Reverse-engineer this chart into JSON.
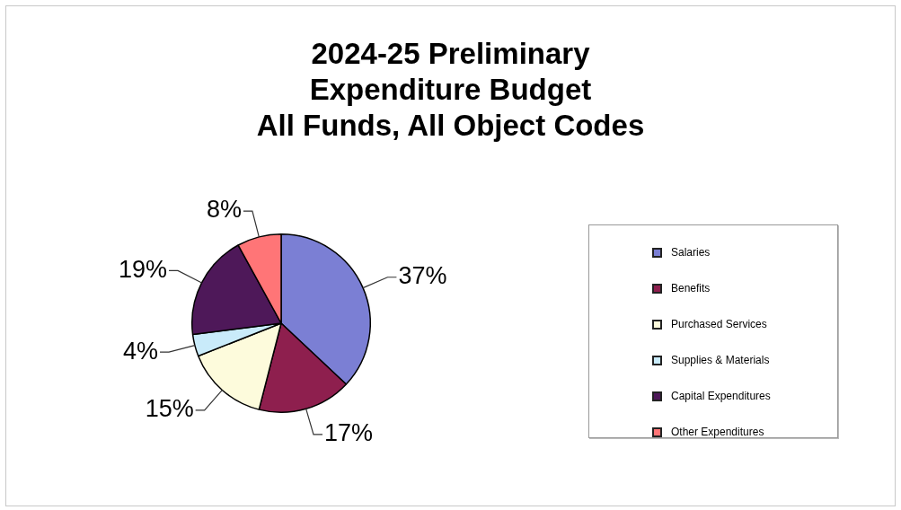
{
  "chart_data": {
    "type": "pie",
    "title": "2024-25 Preliminary\nExpenditure Budget\nAll Funds, All Object Codes",
    "categories": [
      "Salaries",
      "Benefits",
      "Purchased Services",
      "Supplies & Materials",
      "Capital Expenditures",
      "Other Expenditures"
    ],
    "values": [
      37,
      17,
      15,
      4,
      19,
      8
    ],
    "value_labels": [
      "37%",
      "17%",
      "15%",
      "4%",
      "19%",
      "8%"
    ],
    "colors": [
      "#7b7fd4",
      "#8e1f4e",
      "#fdfbdc",
      "#c9ebfa",
      "#4e1859",
      "#ff7577"
    ],
    "legend": "right"
  }
}
